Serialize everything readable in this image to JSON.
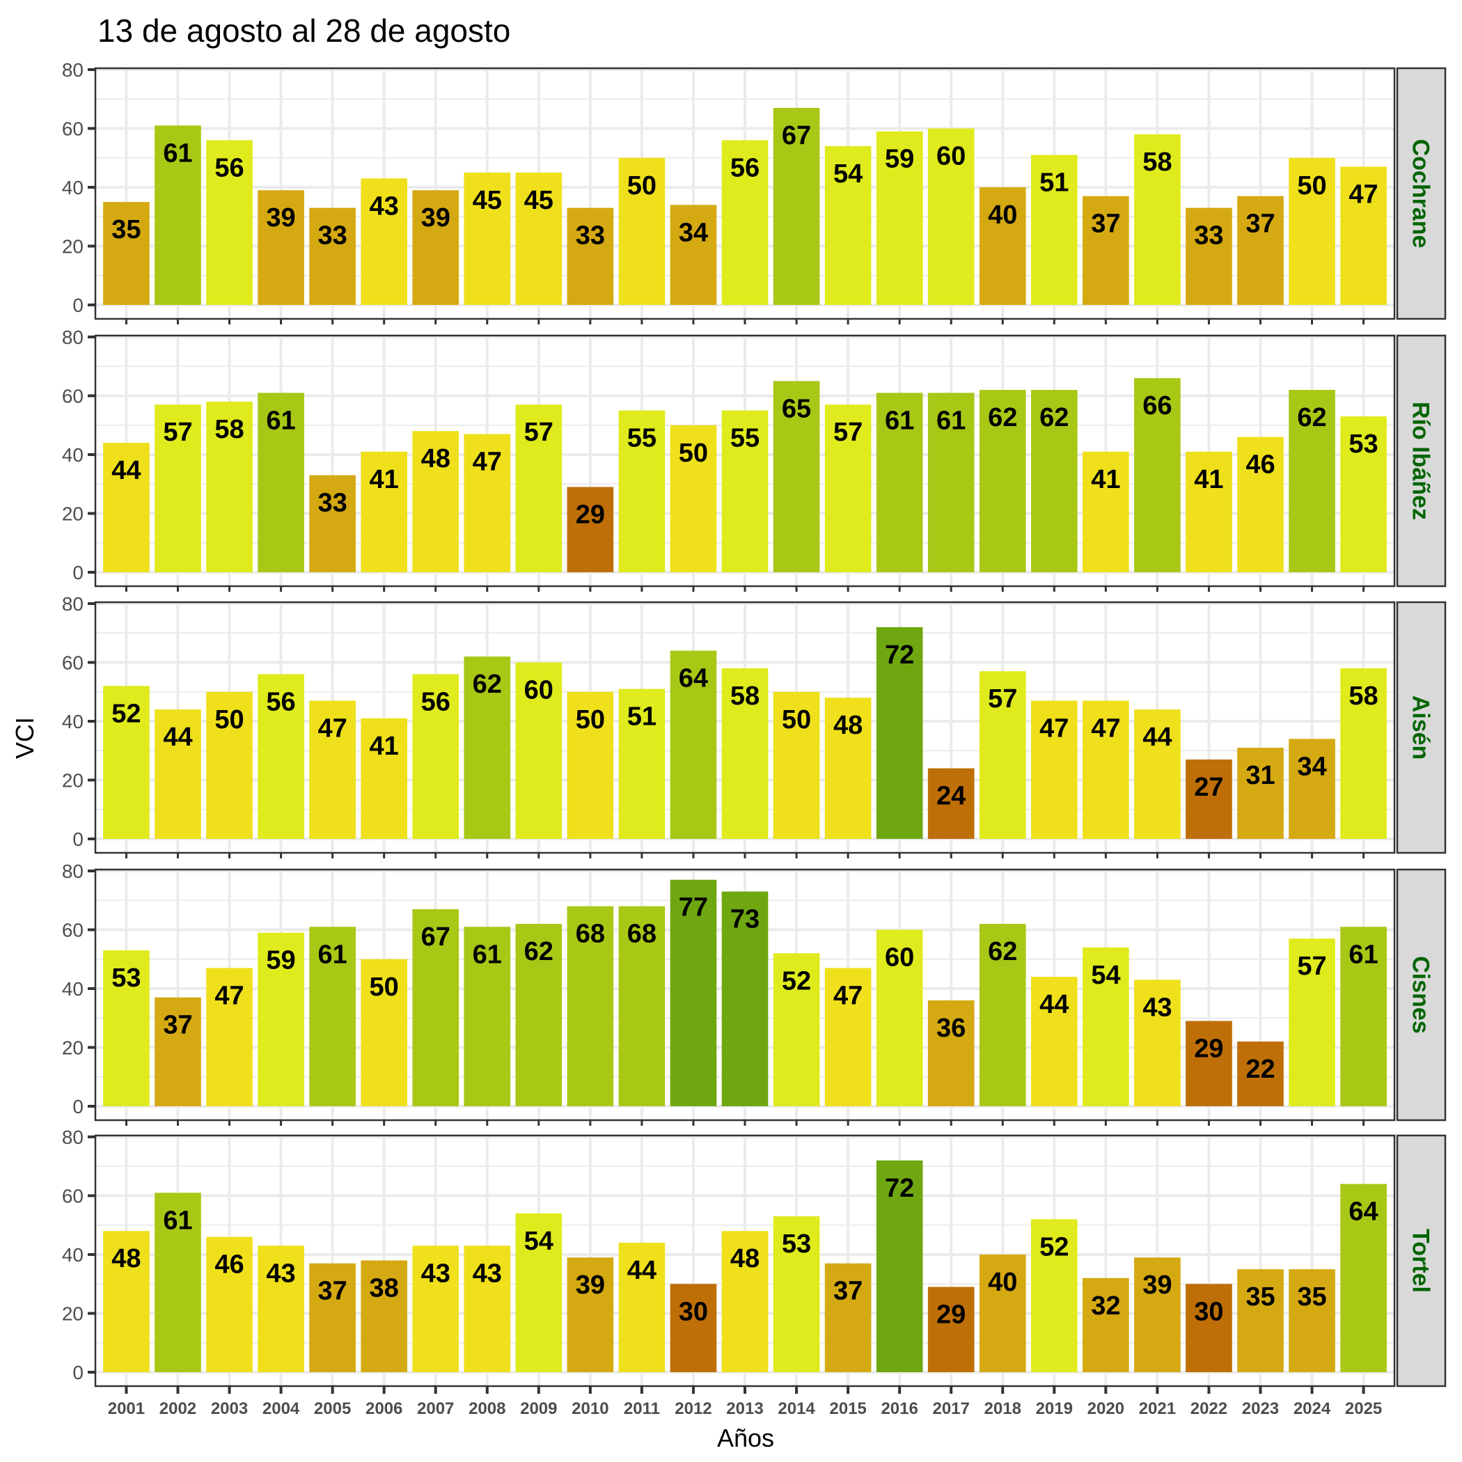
{
  "chart_data": {
    "type": "bar",
    "title": "13 de agosto al 28 de agosto",
    "xlabel": "Años",
    "ylabel": "VCI",
    "ylim": [
      0,
      80
    ],
    "yticks": [
      0,
      20,
      40,
      60,
      80
    ],
    "grid": true,
    "facet_strip_position": "right",
    "facet_label_color": "#006400",
    "categories": [
      "2001",
      "2002",
      "2003",
      "2004",
      "2005",
      "2006",
      "2007",
      "2008",
      "2009",
      "2010",
      "2011",
      "2012",
      "2013",
      "2014",
      "2015",
      "2016",
      "2017",
      "2018",
      "2019",
      "2020",
      "2021",
      "2022",
      "2023",
      "2024",
      "2025"
    ],
    "color_bins": [
      {
        "max": 30,
        "color": "#BF6F08"
      },
      {
        "max": 40,
        "color": "#D5A912"
      },
      {
        "max": 50,
        "color": "#EFE01B"
      },
      {
        "max": 60,
        "color": "#DFEB1C"
      },
      {
        "max": 70,
        "color": "#A8C816"
      },
      {
        "max": 100,
        "color": "#6FA711"
      }
    ],
    "series": [
      {
        "name": "Cochrane",
        "values": [
          35,
          61,
          56,
          39,
          33,
          43,
          39,
          45,
          45,
          33,
          50,
          34,
          56,
          67,
          54,
          59,
          60,
          40,
          51,
          37,
          58,
          33,
          37,
          50,
          47
        ]
      },
      {
        "name": "Río Ibáñez",
        "values": [
          44,
          57,
          58,
          61,
          33,
          41,
          48,
          47,
          57,
          29,
          55,
          50,
          55,
          65,
          57,
          61,
          61,
          62,
          62,
          41,
          66,
          41,
          46,
          62,
          53
        ]
      },
      {
        "name": "Aisén",
        "values": [
          52,
          44,
          50,
          56,
          47,
          41,
          56,
          62,
          60,
          50,
          51,
          64,
          58,
          50,
          48,
          72,
          24,
          57,
          47,
          47,
          44,
          27,
          31,
          34,
          58
        ]
      },
      {
        "name": "Cisnes",
        "values": [
          53,
          37,
          47,
          59,
          61,
          50,
          67,
          61,
          62,
          68,
          68,
          77,
          73,
          52,
          47,
          60,
          36,
          62,
          44,
          54,
          43,
          29,
          22,
          57,
          61
        ]
      },
      {
        "name": "Tortel",
        "values": [
          48,
          61,
          46,
          43,
          37,
          38,
          43,
          43,
          54,
          39,
          44,
          30,
          48,
          53,
          37,
          72,
          29,
          40,
          52,
          32,
          39,
          30,
          35,
          35,
          64
        ]
      }
    ]
  }
}
